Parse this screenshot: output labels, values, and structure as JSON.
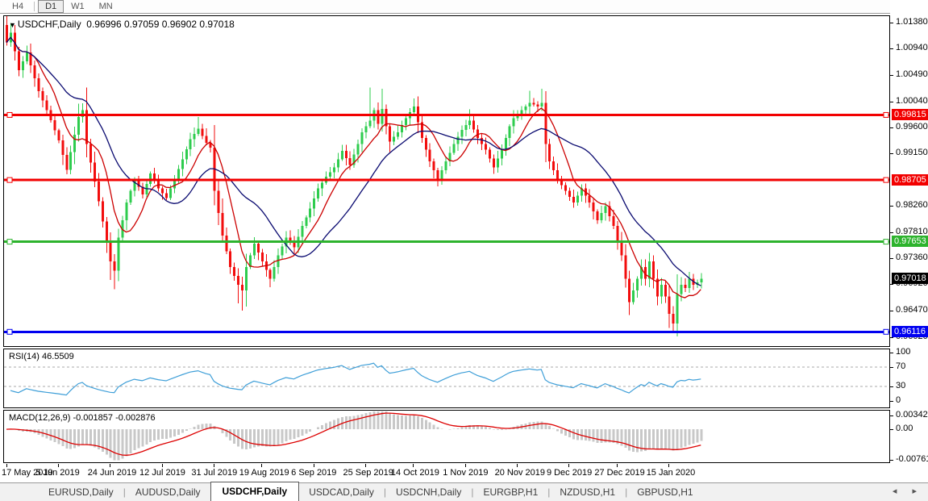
{
  "toolbar": {
    "timeframes": [
      {
        "label": "H4",
        "active": false
      },
      {
        "label": "D1",
        "active": true
      },
      {
        "label": "W1",
        "active": false
      },
      {
        "label": "MN",
        "active": false
      }
    ]
  },
  "chart": {
    "title": {
      "menu_icon": "▼",
      "symbol": "USDCHF,Daily",
      "quotes": "0.96996 0.97059 0.96902 0.97018"
    },
    "rsi_label": "RSI(14) 46.5509",
    "macd_label": "MACD(12,26,9) -0.001857 -0.002876"
  },
  "chart_data": {
    "type": "candlestick",
    "symbol": "USDCHF",
    "timeframe": "Daily",
    "ohlc_display": {
      "open": 0.96996,
      "high": 0.97059,
      "low": 0.96902,
      "close": 0.97018
    },
    "price_axis": {
      "min": 0.959,
      "max": 1.015,
      "ticks": [
        1.0138,
        1.0094,
        1.0049,
        1.0004,
        0.996,
        0.9915,
        0.9826,
        0.9781,
        0.9736,
        0.9692,
        0.9647,
        0.9602
      ]
    },
    "hlines": [
      {
        "price": 0.99815,
        "label": "0.99815",
        "color": "#f20000",
        "width": 3
      },
      {
        "price": 0.98705,
        "label": "0.98705",
        "color": "#f20000",
        "width": 3
      },
      {
        "price": 0.97653,
        "label": "0.97653",
        "color": "#2db32d",
        "width": 3
      },
      {
        "price": 0.96116,
        "label": "0.96116",
        "color": "#0000f0",
        "width": 3
      }
    ],
    "current_price": {
      "value": 0.97018,
      "label": "0.97018",
      "badge_color": "#000000"
    },
    "n_candles": 175,
    "close_anchors": [
      [
        0,
        1.0105
      ],
      [
        1,
        1.0122
      ],
      [
        3,
        1.0058
      ],
      [
        5,
        1.0088
      ],
      [
        8,
        1.0022
      ],
      [
        10,
        0.999
      ],
      [
        13,
        0.9938
      ],
      [
        15,
        0.9888
      ],
      [
        18,
        0.9978
      ],
      [
        19,
        0.999
      ],
      [
        20,
        0.9932
      ],
      [
        22,
        0.9868
      ],
      [
        24,
        0.98
      ],
      [
        26,
        0.9732
      ],
      [
        27,
        0.9716
      ],
      [
        28,
        0.9772
      ],
      [
        30,
        0.9832
      ],
      [
        32,
        0.9872
      ],
      [
        34,
        0.9846
      ],
      [
        36,
        0.9882
      ],
      [
        38,
        0.9856
      ],
      [
        40,
        0.984
      ],
      [
        42,
        0.9872
      ],
      [
        44,
        0.9906
      ],
      [
        46,
        0.994
      ],
      [
        48,
        0.9958
      ],
      [
        50,
        0.9934
      ],
      [
        51,
        0.9926
      ],
      [
        52,
        0.9852
      ],
      [
        54,
        0.9776
      ],
      [
        56,
        0.9722
      ],
      [
        58,
        0.9692
      ],
      [
        59,
        0.9682
      ],
      [
        60,
        0.9722
      ],
      [
        62,
        0.9762
      ],
      [
        64,
        0.9732
      ],
      [
        66,
        0.9702
      ],
      [
        68,
        0.9742
      ],
      [
        70,
        0.9772
      ],
      [
        72,
        0.9756
      ],
      [
        74,
        0.9792
      ],
      [
        76,
        0.9822
      ],
      [
        78,
        0.9856
      ],
      [
        80,
        0.9876
      ],
      [
        82,
        0.9892
      ],
      [
        84,
        0.992
      ],
      [
        86,
        0.9896
      ],
      [
        88,
        0.9932
      ],
      [
        89,
        0.9952
      ],
      [
        91,
        0.9972
      ],
      [
        92,
        0.999
      ],
      [
        93,
        0.9966
      ],
      [
        94,
        0.9992
      ],
      [
        95,
        0.9962
      ],
      [
        96,
        0.9936
      ],
      [
        98,
        0.9952
      ],
      [
        100,
        0.9976
      ],
      [
        102,
        0.9996
      ],
      [
        104,
        0.9942
      ],
      [
        106,
        0.9902
      ],
      [
        108,
        0.9872
      ],
      [
        110,
        0.9902
      ],
      [
        112,
        0.9932
      ],
      [
        114,
        0.9956
      ],
      [
        116,
        0.9972
      ],
      [
        118,
        0.9942
      ],
      [
        120,
        0.9922
      ],
      [
        122,
        0.9892
      ],
      [
        124,
        0.9922
      ],
      [
        126,
        0.9962
      ],
      [
        127,
        0.9976
      ],
      [
        129,
        0.999
      ],
      [
        131,
        1.0002
      ],
      [
        133,
        0.9996
      ],
      [
        134,
        1.0002
      ],
      [
        135,
        0.9932
      ],
      [
        136,
        0.9902
      ],
      [
        138,
        0.9872
      ],
      [
        140,
        0.9852
      ],
      [
        142,
        0.9832
      ],
      [
        144,
        0.9856
      ],
      [
        146,
        0.9832
      ],
      [
        148,
        0.9802
      ],
      [
        150,
        0.9826
      ],
      [
        152,
        0.9792
      ],
      [
        153,
        0.9766
      ],
      [
        154,
        0.9742
      ],
      [
        155,
        0.9702
      ],
      [
        156,
        0.9662
      ],
      [
        157,
        0.9682
      ],
      [
        158,
        0.9702
      ],
      [
        159,
        0.9722
      ],
      [
        160,
        0.9702
      ],
      [
        161,
        0.9732
      ],
      [
        162,
        0.9702
      ],
      [
        163,
        0.9672
      ],
      [
        164,
        0.9692
      ],
      [
        165,
        0.9672
      ],
      [
        166,
        0.9642
      ],
      [
        167,
        0.9626
      ],
      [
        168,
        0.9676
      ],
      [
        169,
        0.9692
      ],
      [
        170,
        0.9686
      ],
      [
        171,
        0.9702
      ],
      [
        172,
        0.9692
      ],
      [
        173,
        0.9696
      ],
      [
        174,
        0.97018
      ]
    ],
    "wick_overrides": {
      "high": {
        "0": 1.0136,
        "1": 1.0138,
        "18": 1.0001,
        "19": 1.0,
        "48": 0.9978,
        "91": 1.0028,
        "94": 1.0026,
        "102": 1.001,
        "116": 0.9991,
        "131": 1.0023,
        "134": 1.0026,
        "161": 0.9746
      },
      "low": {
        "26": 0.97,
        "27": 0.9684,
        "58": 0.966,
        "59": 0.9648,
        "66": 0.9688,
        "156": 0.964,
        "166": 0.9618,
        "167": 0.9612
      }
    },
    "moving_averages": [
      {
        "name": "ma-fast",
        "period": 8,
        "color": "#cc0000"
      },
      {
        "name": "ma-slow",
        "period": 21,
        "color": "#0a0a70"
      }
    ],
    "x_axis": {
      "dates": [
        {
          "label": "17 May 2019",
          "i": 0
        },
        {
          "label": "5 Jun 2019",
          "i": 13
        },
        {
          "label": "24 Jun 2019",
          "i": 26
        },
        {
          "label": "12 Jul 2019",
          "i": 39
        },
        {
          "label": "31 Jul 2019",
          "i": 52
        },
        {
          "label": "19 Aug 2019",
          "i": 64
        },
        {
          "label": "6 Sep 2019",
          "i": 77
        },
        {
          "label": "25 Sep 2019",
          "i": 90
        },
        {
          "label": "14 Oct 2019",
          "i": 102
        },
        {
          "label": "1 Nov 2019",
          "i": 115
        },
        {
          "label": "20 Nov 2019",
          "i": 128
        },
        {
          "label": "9 Dec 2019",
          "i": 141
        },
        {
          "label": "27 Dec 2019",
          "i": 153
        },
        {
          "label": "15 Jan 2020",
          "i": 166
        }
      ]
    },
    "indicators": {
      "rsi": {
        "period": 14,
        "value": 46.5509,
        "levels": [
          70,
          30
        ],
        "scale_ticks": [
          100,
          70,
          30,
          0
        ],
        "line_color": "#3f9fd8",
        "level_color": "#aaaaaa"
      },
      "macd": {
        "params": [
          12,
          26,
          9
        ],
        "values": [
          -0.001857,
          -0.002876
        ],
        "scale_ticks": [
          "0.003428",
          "0.00",
          "-0.007615"
        ],
        "scale_max": 0.003428,
        "scale_min": -0.007615,
        "hist_color": "#c8c8c8",
        "signal_color": "#dd0000"
      }
    },
    "colors": {
      "candle_up": "#2ecc4e",
      "candle_down": "#f20d0d",
      "background": "#ffffff",
      "axis_text": "#000000"
    }
  },
  "tabs": {
    "items": [
      {
        "label": "EURUSD,Daily",
        "active": false
      },
      {
        "label": "AUDUSD,Daily",
        "active": false
      },
      {
        "label": "USDCHF,Daily",
        "active": true
      },
      {
        "label": "USDCAD,Daily",
        "active": false
      },
      {
        "label": "USDCNH,Daily",
        "active": false
      },
      {
        "label": "EURGBP,H1",
        "active": false
      },
      {
        "label": "NZDUSD,H1",
        "active": false
      },
      {
        "label": "GBPUSD,H1",
        "active": false
      }
    ],
    "nav_left": "◂",
    "nav_right": "▸"
  }
}
